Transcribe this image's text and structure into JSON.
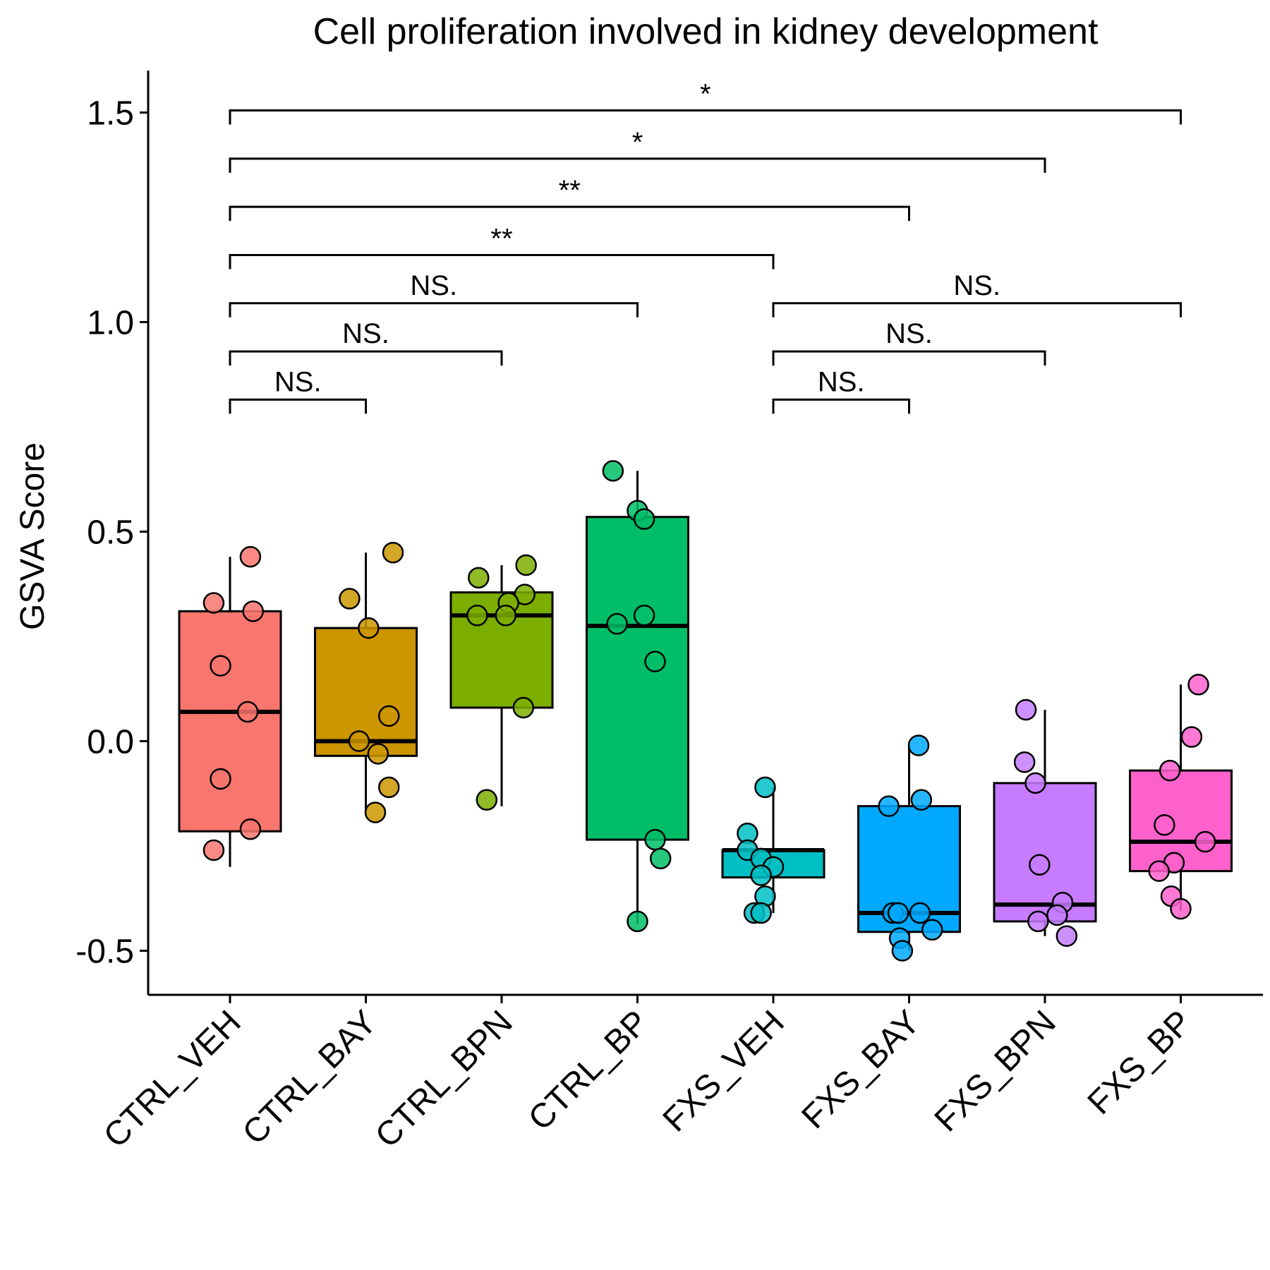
{
  "chart_data": {
    "type": "box",
    "title": "Cell proliferation involved in kidney development",
    "xlabel": "",
    "ylabel": "GSVA Score",
    "ylim": [
      -0.6,
      1.6
    ],
    "yticks": [
      -0.5,
      0.0,
      0.5,
      1.0,
      1.5
    ],
    "ytick_labels": [
      "-0.5",
      "0.0",
      "0.5",
      "1.0",
      "1.5"
    ],
    "grid": false,
    "legend": "none",
    "categories": [
      "CTRL_VEH",
      "CTRL_BAY",
      "CTRL_BPN",
      "CTRL_BP",
      "FXS_VEH",
      "FXS_BAY",
      "FXS_BPN",
      "FXS_BP"
    ],
    "colors": [
      "#F8766D",
      "#CD9600",
      "#7CAE00",
      "#00BE67",
      "#00BFC4",
      "#00A9FF",
      "#C77CFF",
      "#FF61CC"
    ],
    "boxes": [
      {
        "category": "CTRL_VEH",
        "whisker_low": -0.3,
        "q1": -0.215,
        "median": 0.07,
        "q3": 0.31,
        "whisker_high": 0.44
      },
      {
        "category": "CTRL_BAY",
        "whisker_low": -0.17,
        "q1": -0.035,
        "median": 0.0,
        "q3": 0.27,
        "whisker_high": 0.45
      },
      {
        "category": "CTRL_BPN",
        "whisker_low": -0.155,
        "q1": 0.08,
        "median": 0.3,
        "q3": 0.355,
        "whisker_high": 0.42
      },
      {
        "category": "CTRL_BP",
        "whisker_low": -0.435,
        "q1": -0.235,
        "median": 0.275,
        "q3": 0.535,
        "whisker_high": 0.645
      },
      {
        "category": "FXS_VEH",
        "whisker_low": -0.41,
        "q1": -0.325,
        "median": -0.26,
        "q3": -0.26,
        "whisker_high": -0.11
      },
      {
        "category": "FXS_BAY",
        "whisker_low": -0.5,
        "q1": -0.455,
        "median": -0.41,
        "q3": -0.155,
        "whisker_high": -0.01
      },
      {
        "category": "FXS_BPN",
        "whisker_low": -0.465,
        "q1": -0.43,
        "median": -0.39,
        "q3": -0.1,
        "whisker_high": 0.075
      },
      {
        "category": "FXS_BP",
        "whisker_low": -0.405,
        "q1": -0.31,
        "median": -0.24,
        "q3": -0.07,
        "whisker_high": 0.135
      }
    ],
    "points": [
      {
        "category": "CTRL_VEH",
        "x": [
          -0.12,
          0.15,
          -0.12,
          0.17,
          -0.07,
          0.13,
          0.15,
          -0.07
        ],
        "y": [
          -0.26,
          0.44,
          0.33,
          0.31,
          0.18,
          0.07,
          -0.21,
          -0.09
        ]
      },
      {
        "category": "CTRL_BAY",
        "x": [
          0.2,
          -0.12,
          0.02,
          0.17,
          -0.05,
          0.09,
          0.17,
          0.07
        ],
        "y": [
          0.45,
          0.34,
          0.27,
          0.06,
          0.0,
          -0.03,
          -0.11,
          -0.17
        ]
      },
      {
        "category": "CTRL_BPN",
        "x": [
          0.18,
          -0.17,
          0.17,
          0.05,
          0.03,
          -0.18,
          0.16,
          -0.11
        ],
        "y": [
          0.42,
          0.39,
          0.35,
          0.33,
          0.3,
          0.3,
          0.08,
          -0.14
        ]
      },
      {
        "category": "CTRL_BP",
        "x": [
          -0.18,
          0.0,
          0.05,
          0.05,
          -0.15,
          0.13,
          0.13,
          0.17,
          0.0
        ],
        "y": [
          0.645,
          0.55,
          0.53,
          0.3,
          0.28,
          0.19,
          -0.235,
          -0.28,
          -0.43
        ]
      },
      {
        "category": "FXS_VEH",
        "x": [
          -0.06,
          -0.19,
          -0.19,
          -0.09,
          0.0,
          -0.09,
          -0.06,
          -0.14,
          -0.09
        ],
        "y": [
          -0.11,
          -0.22,
          -0.26,
          -0.28,
          -0.3,
          -0.32,
          -0.37,
          -0.41,
          -0.41
        ]
      },
      {
        "category": "FXS_BAY",
        "x": [
          0.07,
          0.09,
          -0.15,
          -0.12,
          -0.08,
          0.08,
          0.17,
          -0.07,
          -0.05
        ],
        "y": [
          -0.01,
          -0.14,
          -0.155,
          -0.41,
          -0.41,
          -0.41,
          -0.45,
          -0.47,
          -0.5
        ]
      },
      {
        "category": "FXS_BPN",
        "x": [
          -0.14,
          -0.15,
          -0.07,
          -0.04,
          0.13,
          0.09,
          -0.05,
          0.16
        ],
        "y": [
          0.075,
          -0.05,
          -0.1,
          -0.295,
          -0.385,
          -0.415,
          -0.43,
          -0.465
        ]
      },
      {
        "category": "FXS_BP",
        "x": [
          0.13,
          0.08,
          -0.08,
          -0.12,
          0.18,
          -0.05,
          -0.16,
          -0.07,
          0.0
        ],
        "y": [
          0.135,
          0.01,
          -0.07,
          -0.2,
          -0.24,
          -0.29,
          -0.31,
          -0.37,
          -0.4
        ]
      }
    ],
    "comparisons": [
      {
        "from": "CTRL_VEH",
        "to": "CTRL_BAY",
        "label": "NS."
      },
      {
        "from": "CTRL_VEH",
        "to": "CTRL_BPN",
        "label": "NS."
      },
      {
        "from": "CTRL_VEH",
        "to": "CTRL_BP",
        "label": "NS."
      },
      {
        "from": "CTRL_VEH",
        "to": "FXS_VEH",
        "label": "**"
      },
      {
        "from": "CTRL_VEH",
        "to": "FXS_BAY",
        "label": "**"
      },
      {
        "from": "CTRL_VEH",
        "to": "FXS_BPN",
        "label": "*"
      },
      {
        "from": "CTRL_VEH",
        "to": "FXS_BP",
        "label": "*"
      },
      {
        "from": "FXS_VEH",
        "to": "FXS_BAY",
        "label": "NS."
      },
      {
        "from": "FXS_VEH",
        "to": "FXS_BPN",
        "label": "NS."
      },
      {
        "from": "FXS_VEH",
        "to": "FXS_BP",
        "label": "NS."
      }
    ],
    "comparison_y": [
      0.815,
      0.93,
      1.045,
      1.16,
      1.275,
      1.39,
      1.505,
      0.815,
      0.93,
      1.045
    ]
  }
}
